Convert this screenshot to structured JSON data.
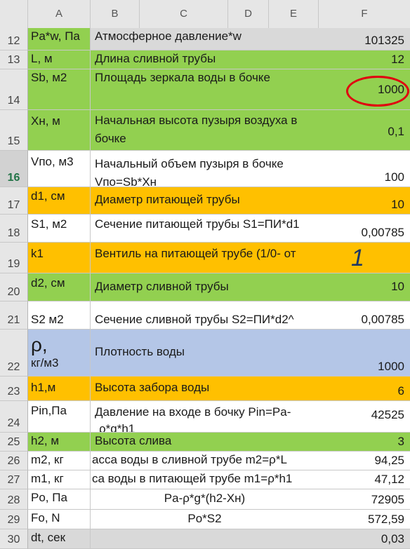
{
  "columns": [
    "A",
    "B",
    "C",
    "D",
    "E",
    "F"
  ],
  "selected_row": "16",
  "rows": [
    {
      "num": "12",
      "a": "Pa*w, Па",
      "b": "Атмосферное давление*w",
      "f": "101325"
    },
    {
      "num": "13",
      "a": "L, м",
      "b": "Длина сливной трубы",
      "f": "12"
    },
    {
      "num": "14",
      "a": "Sb, м2",
      "b": "Площадь зеркала воды в бочке",
      "f": "1000"
    },
    {
      "num": "15",
      "a": "Xн, м",
      "b": "Начальная высота пузыря воздуха в бочке",
      "f": "0,1"
    },
    {
      "num": "16",
      "a": "Vпо, м3",
      "b": "Начальный объем пузыря в бочке",
      "b2": "Vпо=Sb*Xн",
      "f": "100"
    },
    {
      "num": "17",
      "a": "d1, см",
      "b": "Диаметр питающей трубы",
      "f": "10"
    },
    {
      "num": "18",
      "a": "S1, м2",
      "b": "Сечение питающей трубы S1=ПИ*d1",
      "f": "0,00785"
    },
    {
      "num": "19",
      "a": "k1",
      "b": "Вентиль на питающей трубе (1/0- от",
      "f": "1"
    },
    {
      "num": "20",
      "a": "d2, см",
      "b": "Диаметр сливной трубы",
      "f": "10"
    },
    {
      "num": "21",
      "a": "S2 м2",
      "b": "Сечение сливной трубы S2=ПИ*d2^",
      "f": "0,00785"
    },
    {
      "num": "22",
      "a": "ρ,",
      "a2": "кг/м3",
      "b": "Плотность воды",
      "f": "1000"
    },
    {
      "num": "23",
      "a": "h1,м",
      "b": "Высота забора воды",
      "f": "6"
    },
    {
      "num": "24",
      "a": "Pin,Па",
      "b": "Давление на входе в бочку  Pin=Pa-",
      "b2": "ρ*g*h1",
      "f": "42525"
    },
    {
      "num": "25",
      "a": "h2, м",
      "b": "Высота слива",
      "f": "3"
    },
    {
      "num": "26",
      "a": "m2, кг",
      "b": "асса воды в сливной трубе    m2=ρ*L",
      "f": "94,25"
    },
    {
      "num": "27",
      "a": "m1, кг",
      "b": "са воды в питающей трубе  m1=ρ*h1",
      "f": "47,12"
    },
    {
      "num": "28",
      "a": "Po, Па",
      "b": "Pa-ρ*g*(h2-Xн)",
      "f": "72905"
    },
    {
      "num": "29",
      "a": "Fo, N",
      "b": "Po*S2",
      "f": "572,59"
    },
    {
      "num": "30",
      "a": "dt, сек",
      "b": "",
      "f": "0,03"
    }
  ]
}
